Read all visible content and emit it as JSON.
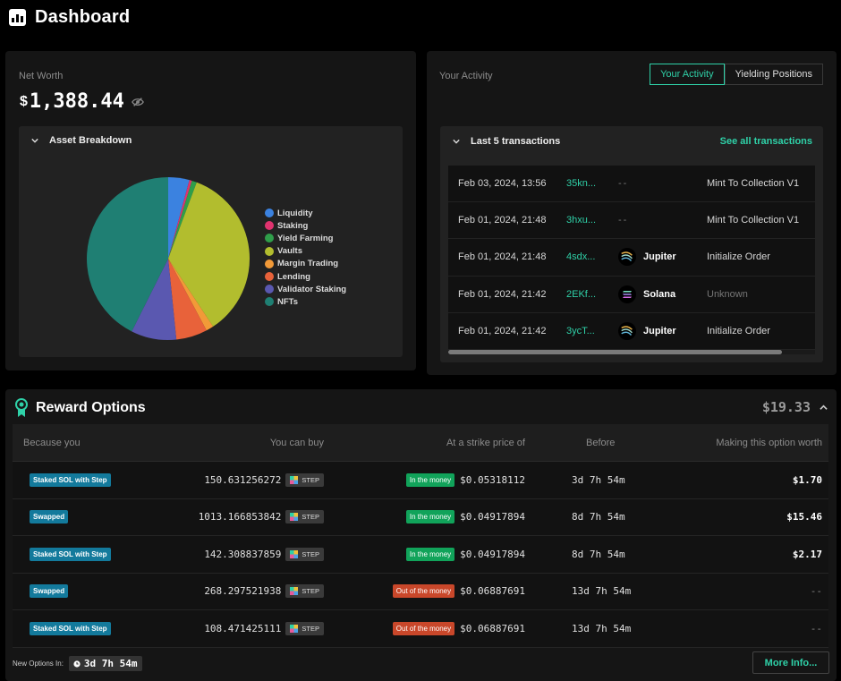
{
  "header": {
    "title": "Dashboard"
  },
  "networth": {
    "label": "Net Worth",
    "currency": "$",
    "value": "1,388.44",
    "asset_breakdown_title": "Asset Breakdown"
  },
  "chart_data": {
    "type": "pie",
    "title": "",
    "categories": [
      "Liquidity",
      "Staking",
      "Yield Farming",
      "Vaults",
      "Margin Trading",
      "Lending",
      "Validator Staking",
      "NFTs"
    ],
    "values": [
      4.2,
      0.5,
      1.0,
      35.0,
      1.5,
      6.2,
      9.0,
      42.6
    ],
    "colors": [
      "#3b82e0",
      "#e0336f",
      "#2f9e4a",
      "#b2bd2e",
      "#f29a38",
      "#e8623a",
      "#5a58b0",
      "#1f7f73"
    ],
    "legend_position": "right"
  },
  "activity": {
    "label": "Your Activity",
    "tabs": [
      "Your Activity",
      "Yielding Positions"
    ],
    "tx_title": "Last 5 transactions",
    "see_all": "See all transactions",
    "transactions": [
      {
        "date": "Feb 03, 2024, 13:56",
        "sig": "35kn...",
        "program": "--",
        "program_icon": "",
        "action": "Mint To Collection V1"
      },
      {
        "date": "Feb 01, 2024, 21:48",
        "sig": "3hxu...",
        "program": "--",
        "program_icon": "",
        "action": "Mint To Collection V1"
      },
      {
        "date": "Feb 01, 2024, 21:48",
        "sig": "4sdx...",
        "program": "Jupiter",
        "program_icon": "jupiter-icon",
        "action": "Initialize Order"
      },
      {
        "date": "Feb 01, 2024, 21:42",
        "sig": "2EKf...",
        "program": "Solana",
        "program_icon": "solana-icon",
        "action": "Unknown"
      },
      {
        "date": "Feb 01, 2024, 21:42",
        "sig": "3ycT...",
        "program": "Jupiter",
        "program_icon": "jupiter-icon",
        "action": "Initialize Order"
      }
    ]
  },
  "rewards": {
    "title": "Reward Options",
    "total": "$19.33",
    "columns": [
      "Because you",
      "You can buy",
      "At a strike price of",
      "Before",
      "Making this option worth"
    ],
    "token": "STEP",
    "rows": [
      {
        "reason": "Staked SOL with Step",
        "amount": "150.631256272",
        "status": "In the money",
        "status_type": "in",
        "strike": "$0.05318112",
        "before": "3d 7h 54m",
        "worth": "$1.70"
      },
      {
        "reason": "Swapped",
        "amount": "1013.166853842",
        "status": "In the money",
        "status_type": "in",
        "strike": "$0.04917894",
        "before": "8d 7h 54m",
        "worth": "$15.46"
      },
      {
        "reason": "Staked SOL with Step",
        "amount": "142.308837859",
        "status": "In the money",
        "status_type": "in",
        "strike": "$0.04917894",
        "before": "8d 7h 54m",
        "worth": "$2.17"
      },
      {
        "reason": "Swapped",
        "amount": "268.297521938",
        "status": "Out of the money",
        "status_type": "out",
        "strike": "$0.06887691",
        "before": "13d 7h 54m",
        "worth": "--"
      },
      {
        "reason": "Staked SOL with Step",
        "amount": "108.471425111",
        "status": "Out of the money",
        "status_type": "out",
        "strike": "$0.06887691",
        "before": "13d 7h 54m",
        "worth": "--"
      }
    ],
    "new_options_label": "New Options In:",
    "new_options_timer": "3d 7h 54m",
    "more_info": "More Info..."
  }
}
